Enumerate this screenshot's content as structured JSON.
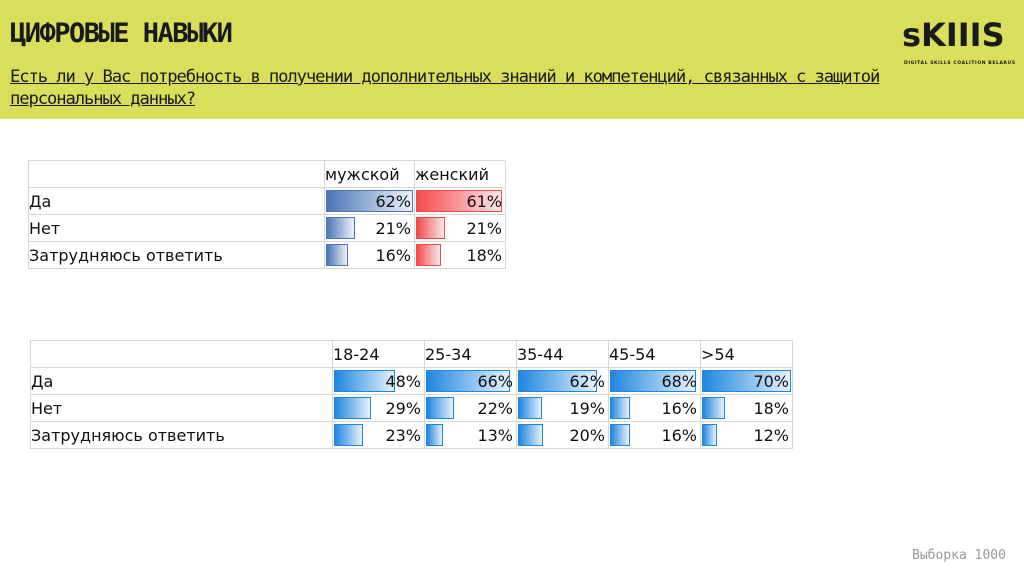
{
  "header": {
    "title": "ЦИФРОВЫЕ НАВЫКИ",
    "question": "Есть ли у Вас потребность в получении дополнительных знаний и компетенций, связанных с защитой персональных данных?",
    "logo_text": "sKIIIS",
    "logo_sub": "DIGITAL SKILLS COALITION BELARUS",
    "bg_color": "#d9df5a"
  },
  "footer": {
    "sample": "Выборка 1000"
  },
  "chart_data": [
    {
      "type": "table",
      "categories": [
        "Да",
        "Нет",
        "Затрудняюсь ответить"
      ],
      "series": [
        {
          "name": "мужской",
          "values": [
            62,
            21,
            16
          ],
          "color": "#4a76b8"
        },
        {
          "name": "женский",
          "values": [
            61,
            21,
            18
          ],
          "color": "#f24b4b"
        }
      ],
      "unit": "%",
      "bar_max": 62
    },
    {
      "type": "table",
      "categories": [
        "Да",
        "Нет",
        "Затрудняюсь ответить"
      ],
      "series": [
        {
          "name": "18-24",
          "values": [
            48,
            29,
            23
          ],
          "color": "#1f86e0"
        },
        {
          "name": "25-34",
          "values": [
            66,
            22,
            13
          ],
          "color": "#1f86e0"
        },
        {
          "name": "35-44",
          "values": [
            62,
            19,
            20
          ],
          "color": "#1f86e0"
        },
        {
          "name": "45-54",
          "values": [
            68,
            16,
            16
          ],
          "color": "#1f86e0"
        },
        {
          "name": ">54",
          "values": [
            70,
            18,
            12
          ],
          "color": "#1f86e0"
        }
      ],
      "unit": "%",
      "bar_max": 70
    }
  ]
}
